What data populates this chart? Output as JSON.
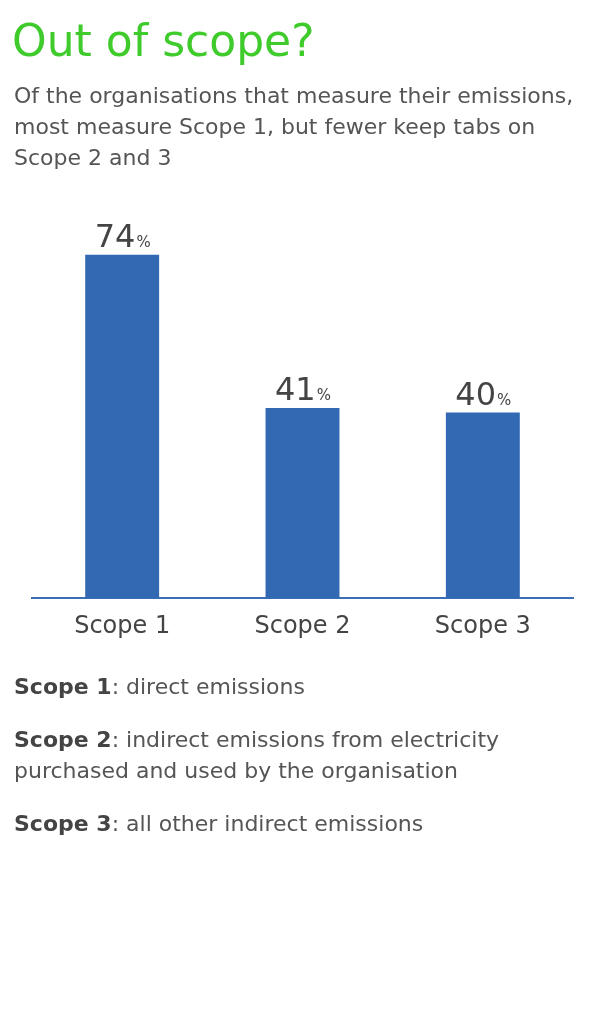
{
  "chart_data": {
    "type": "bar",
    "title": "Out of scope?",
    "subtitle": "Of the organisations that measure their emissions, most measure Scope 1, but fewer keep tabs on Scope 2 and 3",
    "categories": [
      "Scope 1",
      "Scope 2",
      "Scope 3"
    ],
    "values": [
      74,
      41,
      40
    ],
    "color": "#3369b3",
    "value_labels": [
      "74%",
      "41%",
      "40%"
    ],
    "grid": false,
    "legend": false,
    "annotations": [
      "Scope 1: direct emissions",
      "Scope 2: indirect emissions from electricity purchased and used by the organisation",
      "Scope 3: all other indirect emissions"
    ]
  }
}
